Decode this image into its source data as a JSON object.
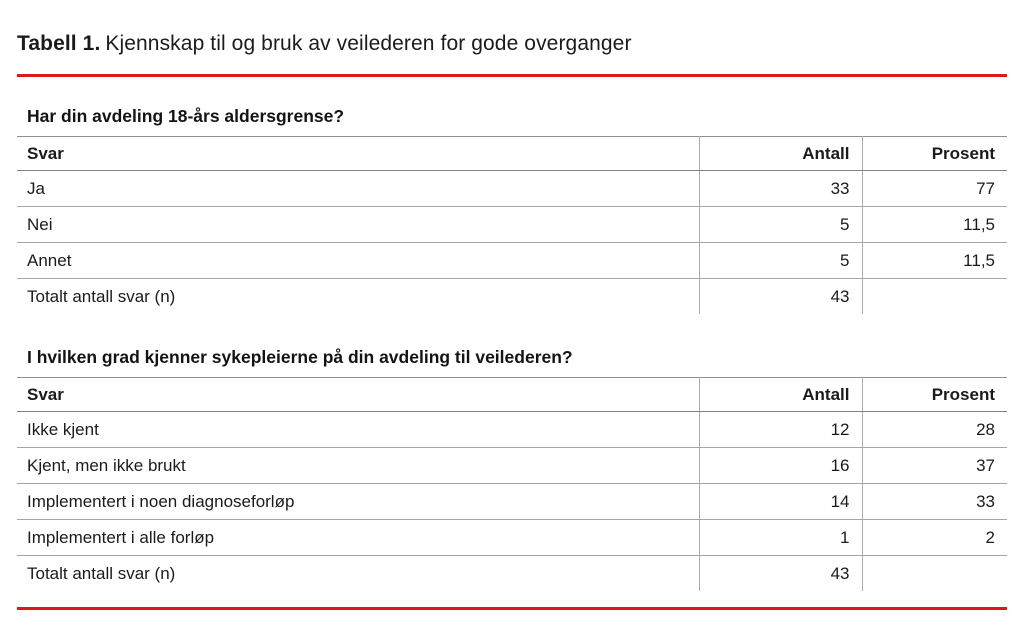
{
  "title": {
    "label": "Tabell 1.",
    "text": "Kjennskap til og bruk av veilederen for gode overganger"
  },
  "accent_color": "#e1141f",
  "tables": [
    {
      "heading": "Har din avdeling 18-års aldersgrense?",
      "columns": [
        "Svar",
        "Antall",
        "Prosent"
      ],
      "rows": [
        [
          "Ja",
          "33",
          "77"
        ],
        [
          "Nei",
          "5",
          "11,5"
        ],
        [
          "Annet",
          "5",
          "11,5"
        ],
        [
          "Totalt antall svar (n)",
          "43",
          ""
        ]
      ]
    },
    {
      "heading": "I hvilken grad kjenner sykepleierne på din avdeling til veilederen?",
      "columns": [
        "Svar",
        "Antall",
        "Prosent"
      ],
      "rows": [
        [
          "Ikke kjent",
          "12",
          "28"
        ],
        [
          "Kjent, men ikke brukt",
          "16",
          "37"
        ],
        [
          "Implementert i noen diagnoseforløp",
          "14",
          "33"
        ],
        [
          "Implementert i alle forløp",
          "1",
          "2"
        ],
        [
          "Totalt antall svar (n)",
          "43",
          ""
        ]
      ]
    }
  ]
}
